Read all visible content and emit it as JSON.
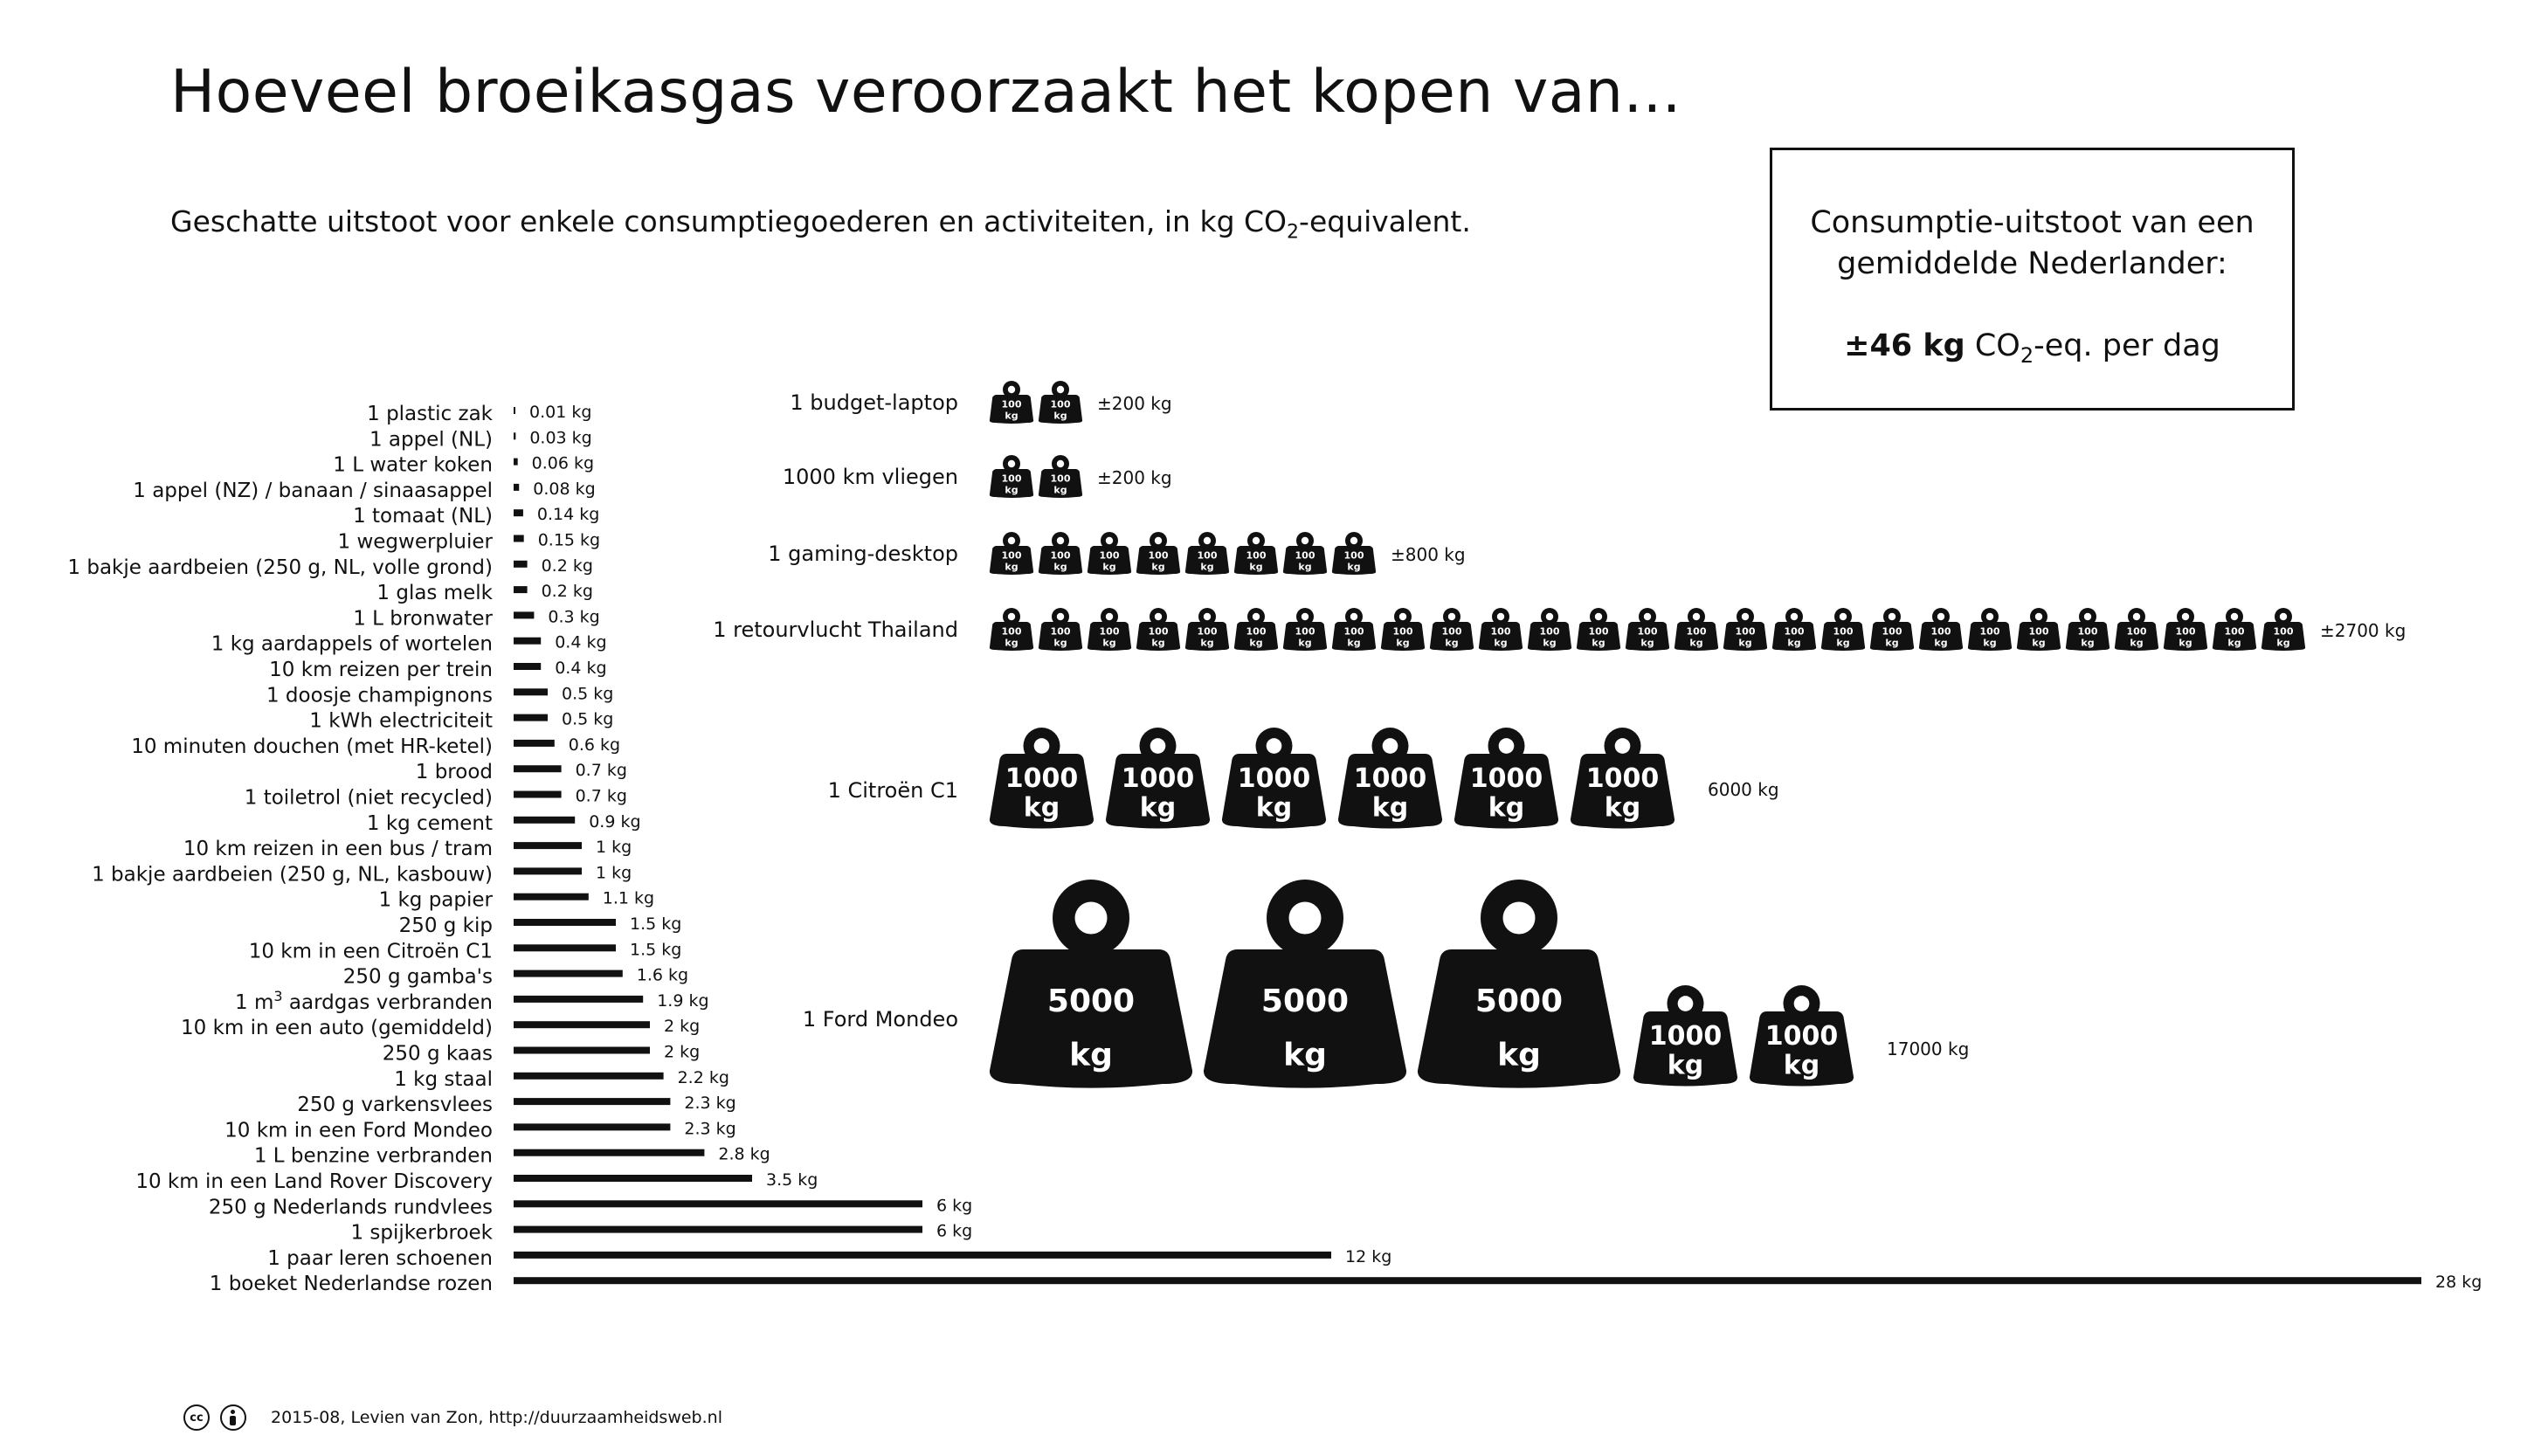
{
  "header": {
    "title": "Hoeveel broeikasgas veroorzaakt het kopen van...",
    "subtitle_before": "Geschatte uitstoot voor enkele consumptiegoederen en activiteiten, in kg CO",
    "subtitle_sub": "2",
    "subtitle_after": "-equivalent."
  },
  "info_box": {
    "line1": "Consumptie-uitstoot van een",
    "line2": "gemiddelde Nederlander:",
    "value": "±46 kg",
    "unit_before": " CO",
    "unit_sub": "2",
    "unit_after": "-eq. per dag"
  },
  "footer": {
    "license_cc": "cc",
    "text": "2015-08, Levien van Zon, http://duurzaamheidsweb.nl"
  },
  "chart_data": [
    {
      "type": "bar",
      "orientation": "horizontal",
      "unit": "kg",
      "xlim": [
        0,
        28
      ],
      "categories": [
        "1 plastic zak",
        "1 appel (NL)",
        "1 L water koken",
        "1 appel (NZ) / banaan / sinaasappel",
        "1 tomaat (NL)",
        "1 wegwerpluier",
        "1 bakje aardbeien (250 g, NL, volle grond)",
        "1 glas melk",
        "1 L bronwater",
        "1 kg aardappels of wortelen",
        "10 km reizen per trein",
        "1 doosje champignons",
        "1 kWh electriciteit",
        "10 minuten douchen (met HR-ketel)",
        "1 brood",
        "1 toiletrol (niet recycled)",
        "1 kg cement",
        "10 km reizen in een bus / tram",
        "1 bakje aardbeien (250 g, NL, kasbouw)",
        "1 kg papier",
        "250 g kip",
        "10 km in een Citroën C1",
        "250 g gamba's",
        "1 m3 aardgas verbranden",
        "10 km in een auto (gemiddeld)",
        "250 g kaas",
        "1 kg staal",
        "250 g varkensvlees",
        "10 km in een Ford Mondeo",
        "1 L benzine verbranden",
        "10 km in een Land Rover Discovery",
        "250 g Nederlands rundvlees",
        "1 spijkerbroek",
        "1 paar leren schoenen",
        "1 boeket Nederlandse rozen"
      ],
      "values": [
        0.01,
        0.03,
        0.06,
        0.08,
        0.14,
        0.15,
        0.2,
        0.2,
        0.3,
        0.4,
        0.4,
        0.5,
        0.5,
        0.6,
        0.7,
        0.7,
        0.9,
        1,
        1,
        1.1,
        1.5,
        1.5,
        1.6,
        1.9,
        2,
        2,
        2.2,
        2.3,
        2.3,
        2.8,
        3.5,
        6,
        6,
        12,
        28
      ],
      "value_labels": [
        "0.01 kg",
        "0.03 kg",
        "0.06 kg",
        "0.08 kg",
        "0.14 kg",
        "0.15 kg",
        "0.2 kg",
        "0.2 kg",
        "0.3 kg",
        "0.4 kg",
        "0.4 kg",
        "0.5 kg",
        "0.5 kg",
        "0.6 kg",
        "0.7 kg",
        "0.7 kg",
        "0.9 kg",
        "1 kg",
        "1 kg",
        "1.1 kg",
        "1.5 kg",
        "1.5 kg",
        "1.6 kg",
        "1.9 kg",
        "2 kg",
        "2 kg",
        "2.2 kg",
        "2.3 kg",
        "2.3 kg",
        "2.8 kg",
        "3.5 kg",
        "6 kg",
        "6 kg",
        "12 kg",
        "28 kg"
      ]
    },
    {
      "type": "pictogram",
      "unit": "kg",
      "items": [
        {
          "label": "1 budget-laptop",
          "value": 200,
          "value_label": "±200 kg",
          "weights": [
            100,
            100
          ]
        },
        {
          "label": "1000 km vliegen",
          "value": 200,
          "value_label": "±200 kg",
          "weights": [
            100,
            100
          ]
        },
        {
          "label": "1 gaming-desktop",
          "value": 800,
          "value_label": "±800 kg",
          "weights": [
            100,
            100,
            100,
            100,
            100,
            100,
            100,
            100
          ]
        },
        {
          "label": "1 retourvlucht Thailand",
          "value": 2700,
          "value_label": "±2700 kg",
          "weights": [
            100,
            100,
            100,
            100,
            100,
            100,
            100,
            100,
            100,
            100,
            100,
            100,
            100,
            100,
            100,
            100,
            100,
            100,
            100,
            100,
            100,
            100,
            100,
            100,
            100,
            100,
            100
          ]
        },
        {
          "label": "1 Citroën C1",
          "value": 6000,
          "value_label": "6000 kg",
          "weights": [
            1000,
            1000,
            1000,
            1000,
            1000,
            1000
          ]
        },
        {
          "label": "1 Ford Mondeo",
          "value": 17000,
          "value_label": "17000 kg",
          "weights": [
            5000,
            5000,
            5000,
            1000,
            1000
          ]
        }
      ],
      "weight_texts": {
        "100": "100",
        "1000": "1000",
        "5000": "5000",
        "unit": "kg"
      }
    }
  ]
}
